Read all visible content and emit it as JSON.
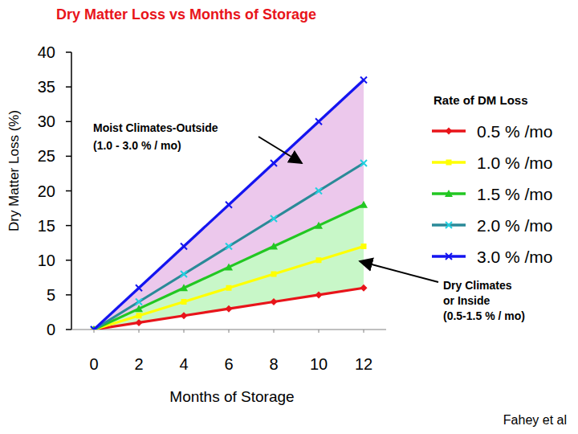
{
  "chart_data": {
    "type": "line",
    "title": "Dry Matter Loss vs Months of Storage",
    "x_label": "Months of Storage",
    "y_label": "Dry Matter Loss (%)",
    "legend_title": "Rate of DM Loss",
    "legend": "right",
    "grid": false,
    "x": [
      0,
      2,
      4,
      6,
      8,
      10,
      12
    ],
    "xlim": [
      -1,
      13
    ],
    "xticks": [
      0,
      2,
      4,
      6,
      8,
      10,
      12
    ],
    "ylim": [
      0,
      40
    ],
    "yticks": [
      0,
      5,
      10,
      15,
      20,
      25,
      30,
      35,
      40
    ],
    "series": [
      {
        "name": "0.5 % /mo",
        "color": "#e8141a",
        "marker": "diamond",
        "values": [
          0,
          1,
          2,
          3,
          4,
          5,
          6
        ]
      },
      {
        "name": "1.0 % /mo",
        "color": "#ffff00",
        "marker": "square",
        "values": [
          0,
          2,
          4,
          6,
          8,
          10,
          12
        ]
      },
      {
        "name": "1.5 % /mo",
        "color": "#22c722",
        "marker": "triangle",
        "values": [
          0,
          3,
          6,
          9,
          12,
          15,
          18
        ]
      },
      {
        "name": "2.0 % /mo",
        "color": "#2a8a98",
        "marker": "x",
        "values": [
          0,
          4,
          8,
          12,
          16,
          20,
          24
        ]
      },
      {
        "name": "3.0 % /mo",
        "color": "#1414f0",
        "marker": "x",
        "values": [
          0,
          6,
          12,
          18,
          24,
          30,
          36
        ]
      }
    ],
    "annotations": [
      {
        "lines": [
          "Moist Climates-Outside",
          "(1.0 - 3.0 % / mo)"
        ]
      },
      {
        "lines": [
          "Dry Climates",
          "or Inside",
          "(0.5-1.5 % / mo)"
        ]
      }
    ],
    "source": "Fahey et al"
  }
}
